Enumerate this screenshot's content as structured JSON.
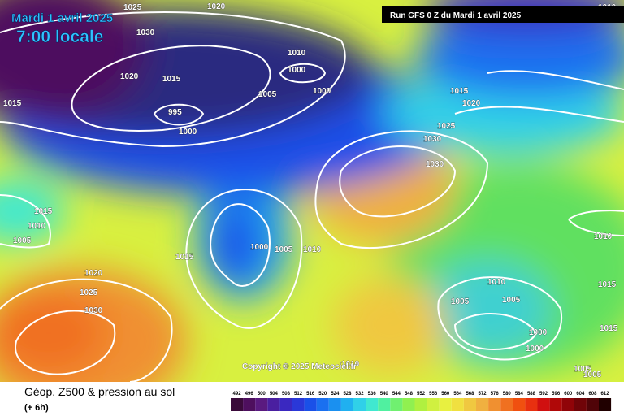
{
  "header": {
    "date": "Mardi 1 avril 2025",
    "time": "7:00 locale",
    "run": "Run GFS 0 Z du Mardi 1 avril 2025"
  },
  "copyright": "Copyright © 2025 Meteociel.fr",
  "footer": {
    "title": "Géop. Z500 & pression au sol",
    "lead": "(+ 6h)"
  },
  "colorscale": {
    "labels": [
      492,
      496,
      500,
      504,
      508,
      512,
      516,
      520,
      524,
      528,
      532,
      536,
      540,
      544,
      548,
      552,
      556,
      560,
      564,
      568,
      572,
      576,
      580,
      584,
      588,
      592,
      596,
      600,
      604,
      608,
      612
    ],
    "colors": [
      "#3a0a3a",
      "#4e0f5e",
      "#5a1a80",
      "#4a1fa0",
      "#3a28c0",
      "#2a38d8",
      "#1a50e8",
      "#1a70f0",
      "#1a90f0",
      "#20b0f0",
      "#30d0e8",
      "#40e8d0",
      "#50f0a0",
      "#70f070",
      "#90f050",
      "#b0f040",
      "#d0f040",
      "#e8f040",
      "#f0e040",
      "#f0c840",
      "#f0b040",
      "#f09030",
      "#f07020",
      "#f05010",
      "#e83010",
      "#d01010",
      "#b00808",
      "#900408",
      "#700408",
      "#500408",
      "#200000"
    ]
  },
  "isobars": [
    1025,
    1020,
    1030,
    1020,
    1015,
    1010,
    1000,
    1005,
    1000,
    995,
    1000,
    1015,
    1015,
    1020,
    1025,
    1030,
    1030,
    1015,
    1010,
    1005,
    1000,
    1005,
    1010,
    1015,
    1020,
    1025,
    1030,
    1010,
    1005,
    1005,
    1000,
    1000,
    1010,
    1015,
    1015,
    1010,
    1005,
    1005,
    1010
  ]
}
